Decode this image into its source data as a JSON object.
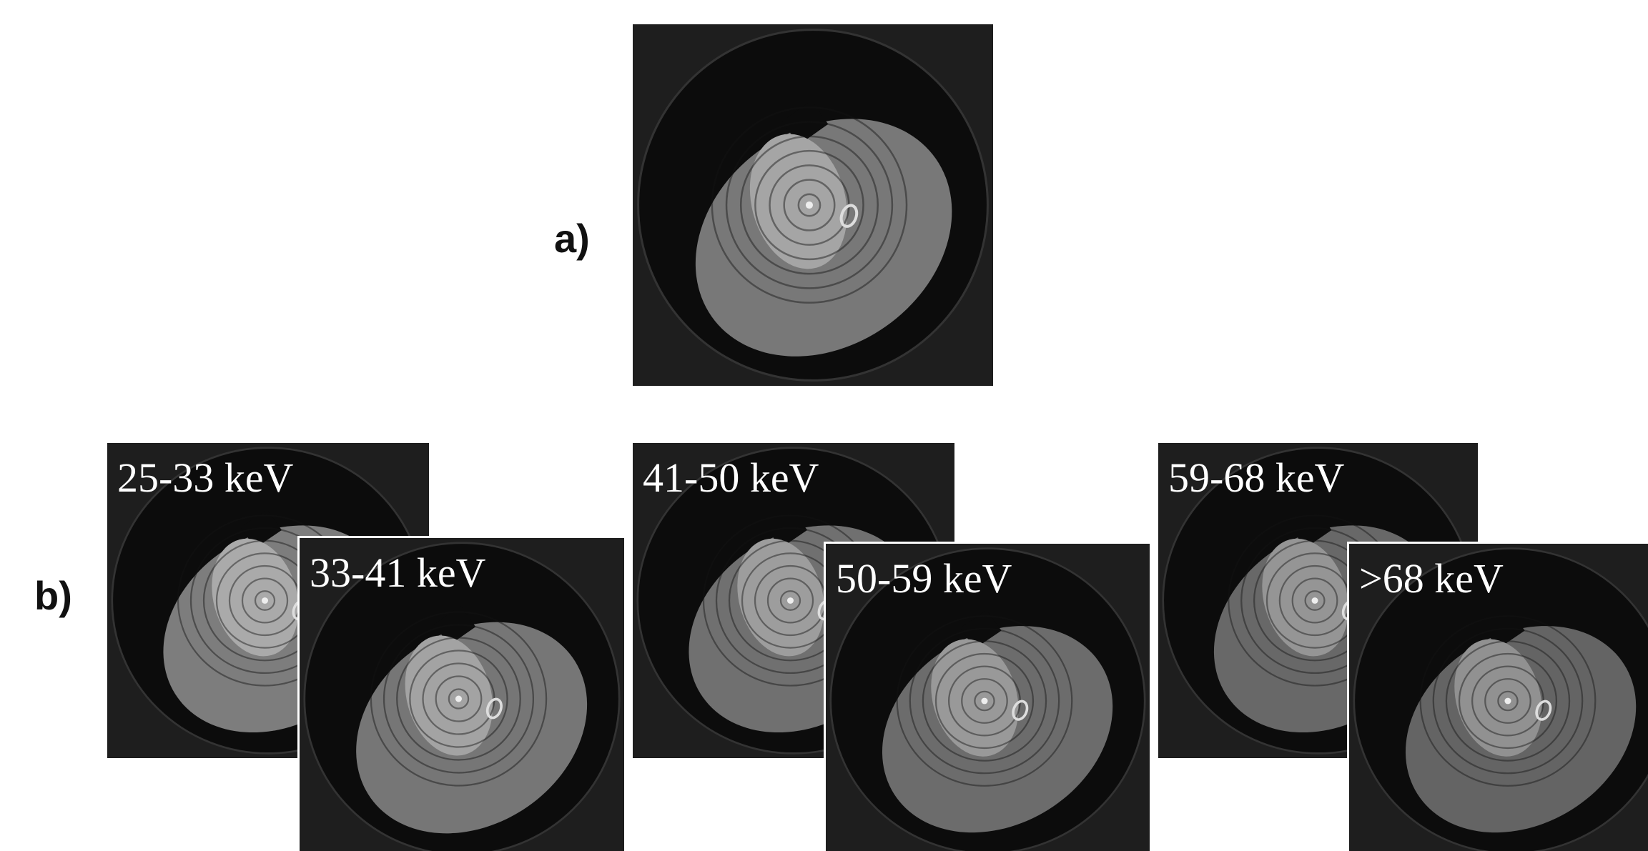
{
  "panels": {
    "a": {
      "label": "a)"
    },
    "b": {
      "label": "b)",
      "images": [
        "25-33 keV",
        "33-41 keV",
        "41-50 keV",
        "50-59 keV",
        "59-68 keV",
        ">68 keV"
      ]
    }
  }
}
